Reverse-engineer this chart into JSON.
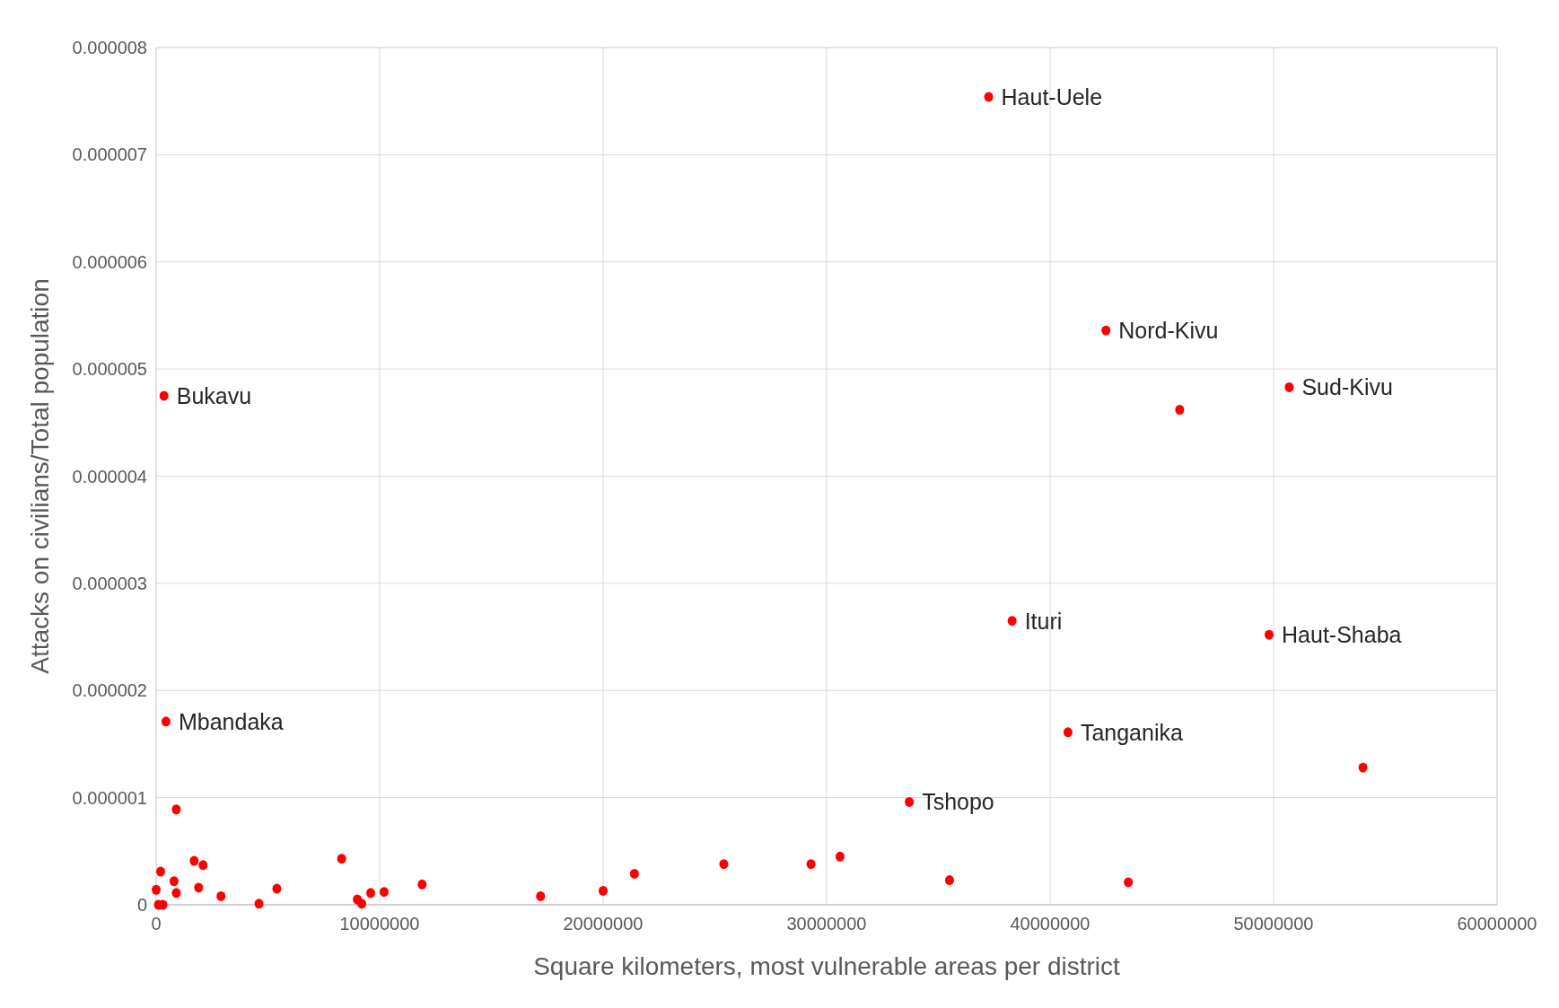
{
  "chart_data": {
    "type": "scatter",
    "xlabel": "Square kilometers, most vulnerable areas per district",
    "ylabel": "Attacks on civilians/Total population",
    "x": [
      37250000,
      42500000,
      50700000,
      45800000,
      350000,
      38300000,
      49800000,
      440000,
      40800000,
      54000000,
      33700000,
      900000,
      200000,
      800000,
      900000,
      0,
      100000,
      300000,
      1700000,
      2100000,
      1900000,
      2900000,
      4600000,
      5400000,
      8300000,
      9000000,
      9200000,
      9600000,
      10200000,
      11900000,
      17200000,
      20000000,
      21400000,
      25400000,
      29300000,
      30600000,
      35500000,
      43500000
    ],
    "values": [
      7.54e-06,
      5.36e-06,
      4.83e-06,
      4.62e-06,
      4.75e-06,
      2.65e-06,
      2.52e-06,
      1.71e-06,
      1.61e-06,
      1.28e-06,
      9.6e-07,
      8.9e-07,
      3.1e-07,
      2.2e-07,
      1.1e-07,
      1.4e-07,
      0,
      0,
      4.1e-07,
      3.7e-07,
      1.6e-07,
      8e-08,
      1e-08,
      1.5e-07,
      4.3e-07,
      5e-08,
      1e-08,
      1.1e-07,
      1.2e-07,
      1.9e-07,
      8e-08,
      1.3e-07,
      2.9e-07,
      3.8e-07,
      3.8e-07,
      4.5e-07,
      2.3e-07,
      2.1e-07
    ],
    "color": "#ff0000",
    "marker": "circle",
    "grid": true,
    "xlim": [
      0,
      60000000
    ],
    "xticks": [
      0,
      10000000,
      20000000,
      30000000,
      40000000,
      50000000,
      60000000
    ],
    "ylim": [
      0,
      8e-06
    ],
    "yticks": [
      0,
      {
        "value": 1e-06,
        "label": "0.000001"
      },
      {
        "value": 2e-06,
        "label": "0.000002"
      },
      {
        "value": 3e-06,
        "label": "0.000003"
      },
      {
        "value": 4e-06,
        "label": "0.000004"
      },
      {
        "value": 5e-06,
        "label": "0.000005"
      },
      {
        "value": 6e-06,
        "label": "0.000006"
      },
      {
        "value": 7e-06,
        "label": "0.000007"
      },
      {
        "value": 8e-06,
        "label": "0.000008"
      }
    ],
    "annotations": [
      {
        "text": "Haut-Uele",
        "x": 37250000,
        "y": 7.54e-06
      },
      {
        "text": "Nord-Kivu",
        "x": 42500000,
        "y": 5.36e-06
      },
      {
        "text": "Sud-Kivu",
        "x": 50700000,
        "y": 4.83e-06
      },
      {
        "text": "Bukavu",
        "x": 350000,
        "y": 4.75e-06
      },
      {
        "text": "Ituri",
        "x": 38300000,
        "y": 2.65e-06
      },
      {
        "text": "Haut-Shaba",
        "x": 49800000,
        "y": 2.52e-06
      },
      {
        "text": "Mbandaka",
        "x": 440000,
        "y": 1.71e-06
      },
      {
        "text": "Tanganika",
        "x": 40800000,
        "y": 1.61e-06
      },
      {
        "text": "Tshopo",
        "x": 33700000,
        "y": 9.6e-07
      }
    ]
  }
}
